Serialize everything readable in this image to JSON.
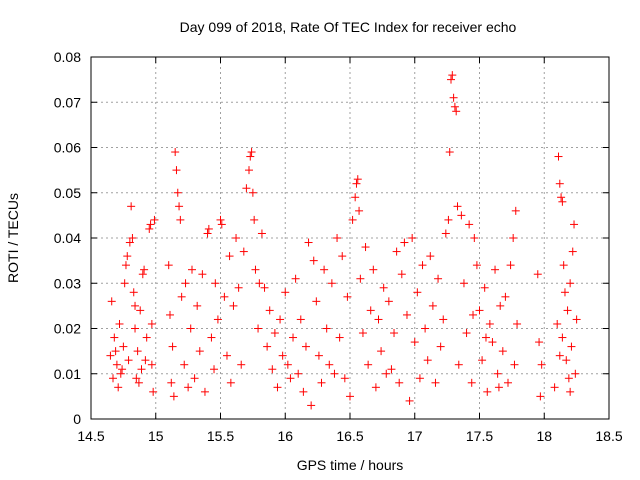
{
  "chart_data": {
    "type": "scatter",
    "title": "Day 099 of 2018, Rate Of TEC Index for receiver echo",
    "xlabel": "GPS time / hours",
    "ylabel": "ROTI / TECUs",
    "xlim": [
      14.5,
      18.5
    ],
    "ylim": [
      0,
      0.08
    ],
    "xticks": [
      "14.5",
      "15",
      "15.5",
      "16",
      "16.5",
      "17",
      "17.5",
      "18",
      "18.5"
    ],
    "yticks": [
      "0",
      "0.01",
      "0.02",
      "0.03",
      "0.04",
      "0.05",
      "0.06",
      "0.07",
      "0.08"
    ],
    "grid": true,
    "marker": "+",
    "color": "#ff0000",
    "series": [
      {
        "points": [
          [
            14.65,
            0.014
          ],
          [
            14.66,
            0.026
          ],
          [
            14.67,
            0.009
          ],
          [
            14.68,
            0.018
          ],
          [
            14.7,
            0.012
          ],
          [
            14.71,
            0.007
          ],
          [
            14.72,
            0.021
          ],
          [
            14.74,
            0.011
          ],
          [
            14.75,
            0.016
          ],
          [
            14.76,
            0.03
          ],
          [
            14.77,
            0.034
          ],
          [
            14.78,
            0.036
          ],
          [
            14.79,
            0.013
          ],
          [
            14.8,
            0.039
          ],
          [
            14.81,
            0.047
          ],
          [
            14.82,
            0.04
          ],
          [
            14.83,
            0.028
          ],
          [
            14.84,
            0.02
          ],
          [
            14.85,
            0.009
          ],
          [
            14.86,
            0.015
          ],
          [
            14.88,
            0.024
          ],
          [
            14.89,
            0.011
          ],
          [
            14.9,
            0.032
          ],
          [
            14.91,
            0.033
          ],
          [
            14.92,
            0.013
          ],
          [
            14.93,
            0.018
          ],
          [
            14.95,
            0.042
          ],
          [
            14.96,
            0.043
          ],
          [
            14.97,
            0.012
          ],
          [
            14.98,
            0.006
          ],
          [
            14.99,
            0.044
          ],
          [
            14.97,
            0.021
          ],
          [
            14.87,
            0.008
          ],
          [
            14.73,
            0.01
          ],
          [
            14.69,
            0.015
          ],
          [
            14.84,
            0.025
          ],
          [
            15.1,
            0.034
          ],
          [
            15.11,
            0.023
          ],
          [
            15.12,
            0.008
          ],
          [
            15.13,
            0.016
          ],
          [
            15.14,
            0.005
          ],
          [
            15.15,
            0.059
          ],
          [
            15.16,
            0.055
          ],
          [
            15.17,
            0.05
          ],
          [
            15.18,
            0.047
          ],
          [
            15.19,
            0.044
          ],
          [
            15.2,
            0.027
          ],
          [
            15.22,
            0.012
          ],
          [
            15.23,
            0.03
          ],
          [
            15.25,
            0.007
          ],
          [
            15.27,
            0.02
          ],
          [
            15.28,
            0.033
          ],
          [
            15.3,
            0.009
          ],
          [
            15.32,
            0.025
          ],
          [
            15.34,
            0.015
          ],
          [
            15.36,
            0.032
          ],
          [
            15.38,
            0.006
          ],
          [
            15.4,
            0.041
          ],
          [
            15.41,
            0.042
          ],
          [
            15.43,
            0.018
          ],
          [
            15.45,
            0.011
          ],
          [
            15.46,
            0.03
          ],
          [
            15.48,
            0.022
          ],
          [
            15.5,
            0.044
          ],
          [
            15.51,
            0.043
          ],
          [
            15.53,
            0.027
          ],
          [
            15.55,
            0.014
          ],
          [
            15.57,
            0.036
          ],
          [
            15.58,
            0.008
          ],
          [
            15.6,
            0.025
          ],
          [
            15.62,
            0.04
          ],
          [
            15.64,
            0.029
          ],
          [
            15.66,
            0.012
          ],
          [
            15.68,
            0.037
          ],
          [
            15.7,
            0.051
          ],
          [
            15.72,
            0.055
          ],
          [
            15.73,
            0.058
          ],
          [
            15.74,
            0.059
          ],
          [
            15.75,
            0.05
          ],
          [
            15.76,
            0.044
          ],
          [
            15.77,
            0.033
          ],
          [
            15.79,
            0.02
          ],
          [
            15.8,
            0.03
          ],
          [
            15.82,
            0.041
          ],
          [
            15.84,
            0.029
          ],
          [
            15.86,
            0.016
          ],
          [
            15.88,
            0.024
          ],
          [
            15.9,
            0.011
          ],
          [
            15.92,
            0.019
          ],
          [
            15.94,
            0.007
          ],
          [
            15.96,
            0.022
          ],
          [
            15.98,
            0.014
          ],
          [
            16.0,
            0.028
          ],
          [
            16.02,
            0.012
          ],
          [
            16.04,
            0.009
          ],
          [
            16.06,
            0.018
          ],
          [
            16.08,
            0.031
          ],
          [
            16.1,
            0.01
          ],
          [
            16.12,
            0.022
          ],
          [
            16.14,
            0.006
          ],
          [
            16.16,
            0.016
          ],
          [
            16.18,
            0.039
          ],
          [
            16.2,
            0.003
          ],
          [
            16.22,
            0.035
          ],
          [
            16.24,
            0.026
          ],
          [
            16.26,
            0.014
          ],
          [
            16.28,
            0.008
          ],
          [
            16.3,
            0.033
          ],
          [
            16.32,
            0.02
          ],
          [
            16.34,
            0.012
          ],
          [
            16.36,
            0.03
          ],
          [
            16.38,
            0.01
          ],
          [
            16.4,
            0.04
          ],
          [
            16.42,
            0.018
          ],
          [
            16.44,
            0.036
          ],
          [
            16.46,
            0.009
          ],
          [
            16.48,
            0.027
          ],
          [
            16.5,
            0.005
          ],
          [
            16.52,
            0.044
          ],
          [
            16.54,
            0.049
          ],
          [
            16.55,
            0.052
          ],
          [
            16.56,
            0.053
          ],
          [
            16.57,
            0.046
          ],
          [
            16.58,
            0.031
          ],
          [
            16.6,
            0.019
          ],
          [
            16.62,
            0.038
          ],
          [
            16.64,
            0.012
          ],
          [
            16.66,
            0.024
          ],
          [
            16.68,
            0.033
          ],
          [
            16.7,
            0.007
          ],
          [
            16.72,
            0.022
          ],
          [
            16.74,
            0.015
          ],
          [
            16.76,
            0.029
          ],
          [
            16.78,
            0.01
          ],
          [
            16.8,
            0.026
          ],
          [
            16.82,
            0.011
          ],
          [
            16.84,
            0.019
          ],
          [
            16.86,
            0.037
          ],
          [
            16.88,
            0.008
          ],
          [
            16.9,
            0.032
          ],
          [
            16.92,
            0.039
          ],
          [
            16.94,
            0.023
          ],
          [
            16.96,
            0.004
          ],
          [
            16.98,
            0.04
          ],
          [
            17.0,
            0.017
          ],
          [
            17.02,
            0.028
          ],
          [
            17.04,
            0.009
          ],
          [
            17.06,
            0.034
          ],
          [
            17.08,
            0.02
          ],
          [
            17.1,
            0.013
          ],
          [
            17.12,
            0.036
          ],
          [
            17.14,
            0.025
          ],
          [
            17.16,
            0.008
          ],
          [
            17.18,
            0.031
          ],
          [
            17.2,
            0.016
          ],
          [
            17.22,
            0.022
          ],
          [
            17.24,
            0.041
          ],
          [
            17.26,
            0.044
          ],
          [
            17.27,
            0.059
          ],
          [
            17.28,
            0.075
          ],
          [
            17.29,
            0.076
          ],
          [
            17.3,
            0.071
          ],
          [
            17.31,
            0.069
          ],
          [
            17.32,
            0.068
          ],
          [
            17.33,
            0.047
          ],
          [
            17.34,
            0.012
          ],
          [
            17.36,
            0.045
          ],
          [
            17.38,
            0.03
          ],
          [
            17.4,
            0.019
          ],
          [
            17.42,
            0.043
          ],
          [
            17.44,
            0.008
          ],
          [
            17.46,
            0.04
          ],
          [
            17.48,
            0.034
          ],
          [
            17.5,
            0.024
          ],
          [
            17.52,
            0.013
          ],
          [
            17.54,
            0.029
          ],
          [
            17.56,
            0.006
          ],
          [
            17.58,
            0.021
          ],
          [
            17.6,
            0.017
          ],
          [
            17.62,
            0.033
          ],
          [
            17.64,
            0.01
          ],
          [
            17.66,
            0.025
          ],
          [
            17.68,
            0.015
          ],
          [
            17.7,
            0.027
          ],
          [
            17.72,
            0.008
          ],
          [
            17.74,
            0.034
          ],
          [
            17.76,
            0.04
          ],
          [
            17.78,
            0.046
          ],
          [
            17.79,
            0.021
          ],
          [
            17.77,
            0.012
          ],
          [
            17.65,
            0.007
          ],
          [
            17.55,
            0.018
          ],
          [
            17.45,
            0.023
          ],
          [
            17.95,
            0.032
          ],
          [
            17.96,
            0.017
          ],
          [
            17.97,
            0.005
          ],
          [
            17.98,
            0.012
          ],
          [
            18.08,
            0.007
          ],
          [
            18.1,
            0.021
          ],
          [
            18.11,
            0.058
          ],
          [
            18.12,
            0.052
          ],
          [
            18.13,
            0.049
          ],
          [
            18.14,
            0.048
          ],
          [
            18.15,
            0.034
          ],
          [
            18.16,
            0.028
          ],
          [
            18.17,
            0.013
          ],
          [
            18.18,
            0.024
          ],
          [
            18.19,
            0.009
          ],
          [
            18.2,
            0.03
          ],
          [
            18.21,
            0.016
          ],
          [
            18.22,
            0.037
          ],
          [
            18.23,
            0.043
          ],
          [
            18.24,
            0.01
          ],
          [
            18.25,
            0.022
          ],
          [
            18.14,
            0.018
          ],
          [
            18.2,
            0.006
          ],
          [
            18.12,
            0.014
          ]
        ]
      }
    ]
  }
}
